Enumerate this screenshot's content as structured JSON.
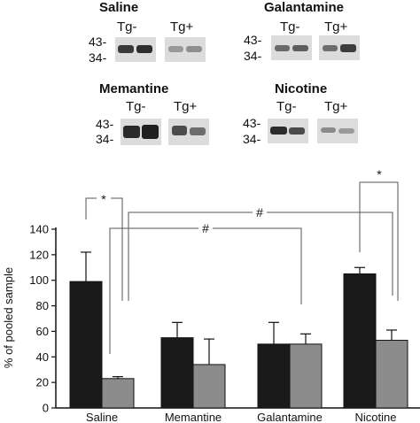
{
  "blots": [
    {
      "title": "Saline",
      "mw_top": "43",
      "mw_bottom": "34",
      "lane_left": "Tg-",
      "lane_right": "Tg+"
    },
    {
      "title": "Galantamine",
      "mw_top": "43",
      "mw_bottom": "34",
      "lane_left": "Tg-",
      "lane_right": "Tg+"
    },
    {
      "title": "Memantine",
      "mw_top": "43",
      "mw_bottom": "34",
      "lane_left": "Tg-",
      "lane_right": "Tg+"
    },
    {
      "title": "Nicotine",
      "mw_top": "43",
      "mw_bottom": "34",
      "lane_left": "Tg-",
      "lane_right": "Tg+"
    }
  ],
  "chart_data": {
    "type": "bar",
    "categories": [
      "Saline",
      "Memantine",
      "Galantamine",
      "Nicotine"
    ],
    "series": [
      {
        "values": [
          99,
          55,
          50,
          105
        ],
        "errors": [
          23,
          12,
          17,
          5
        ],
        "color": "#1a1a1a"
      },
      {
        "values": [
          23,
          34,
          50,
          53
        ],
        "errors": [
          1.5,
          20,
          8,
          8
        ],
        "color": "#8c8c8c"
      }
    ],
    "ylabel": "% of pooled sample",
    "ylim": [
      0,
      140
    ],
    "yticks": [
      "0",
      "20",
      "40",
      "60",
      "80",
      "100",
      "120",
      "140"
    ],
    "significance": [
      {
        "symbol": "*",
        "between": "Saline"
      },
      {
        "symbol": "#",
        "between": "Saline – Nicotine"
      },
      {
        "symbol": "#",
        "between": "Saline – Galantamine"
      },
      {
        "symbol": "*",
        "between": "Nicotine"
      }
    ],
    "grid": false
  }
}
